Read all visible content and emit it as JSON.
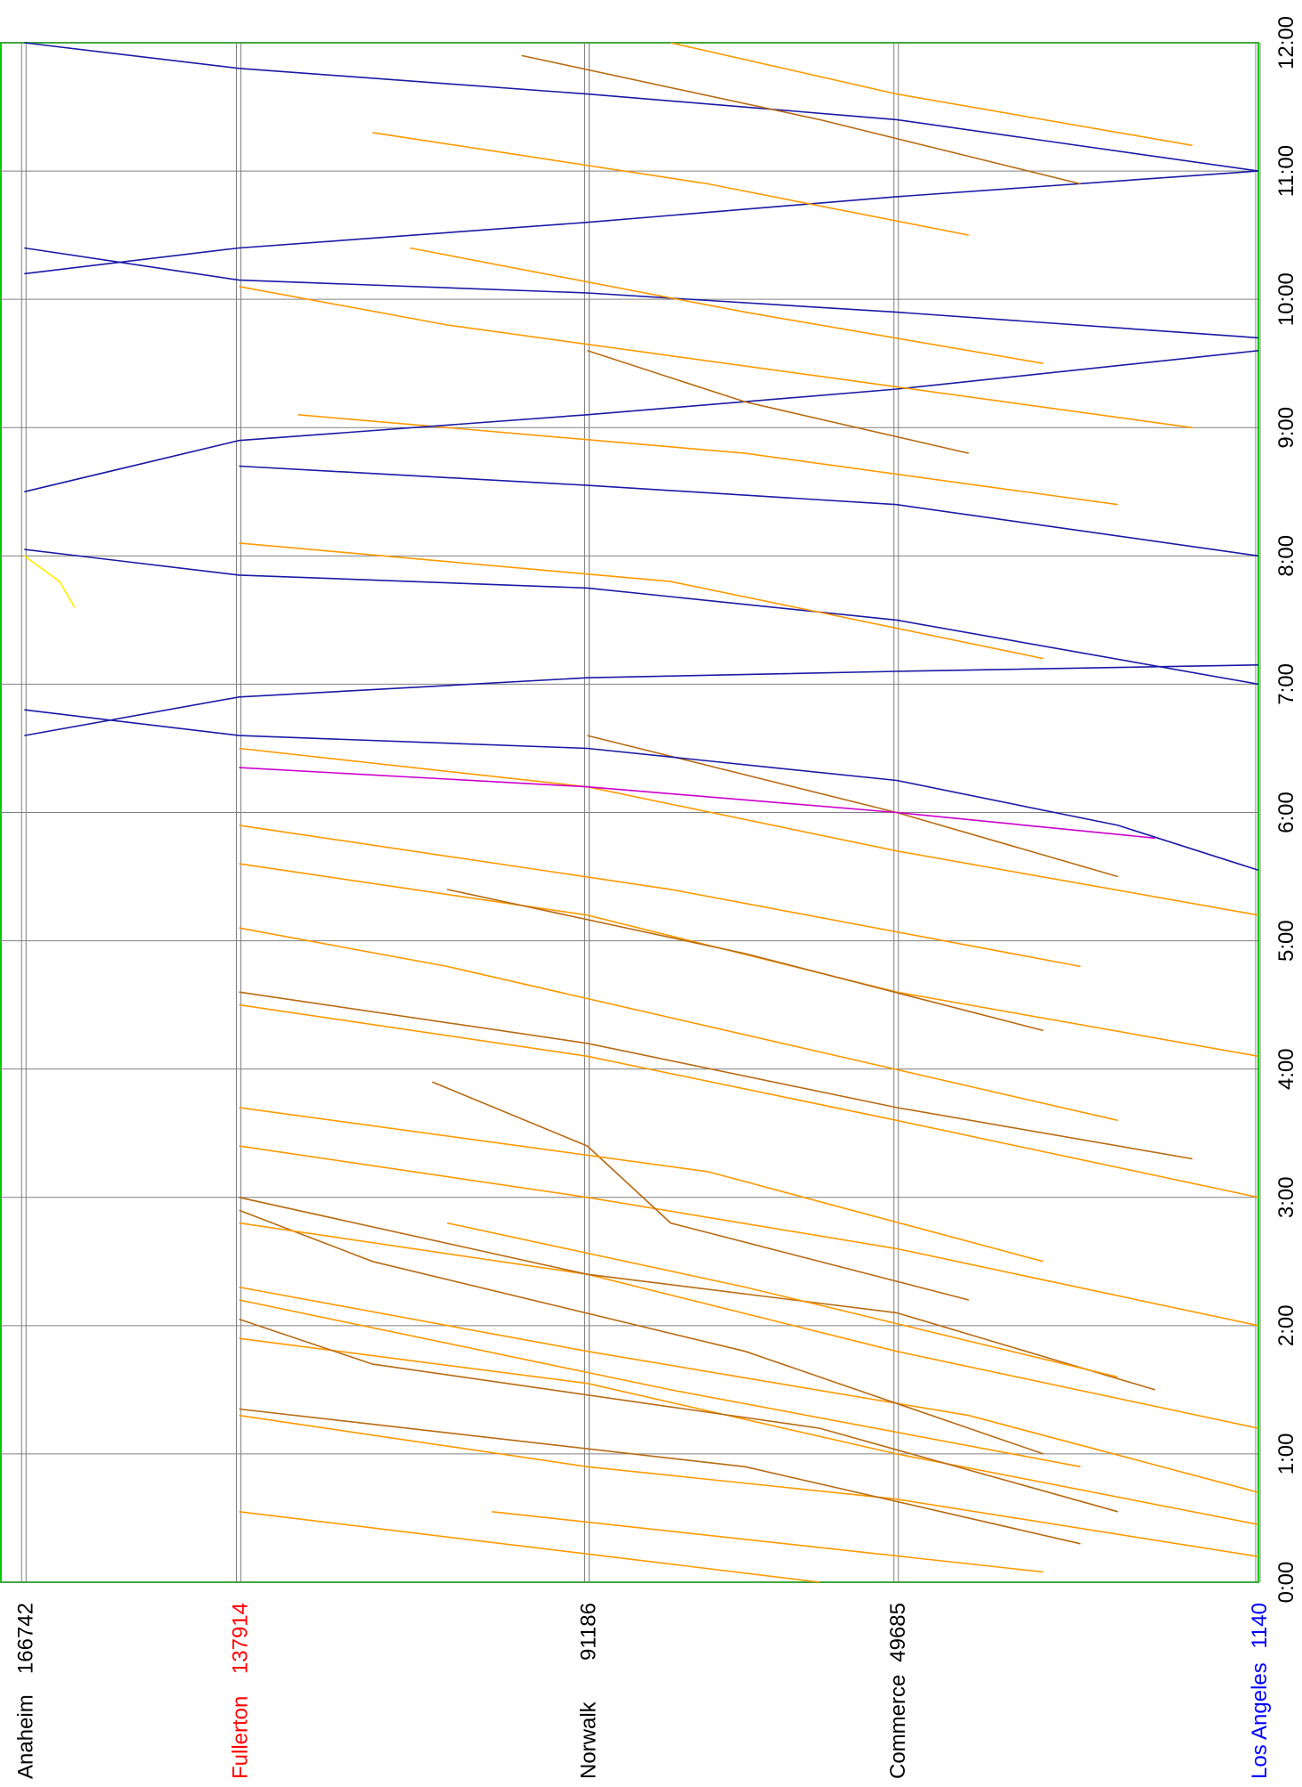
{
  "chart_data": {
    "type": "line",
    "subtype": "train-graph (time vs. station distance)",
    "title": "",
    "xlabel": "",
    "ylabel": "",
    "x_axis": {
      "kind": "time",
      "range": [
        "0:00",
        "12:00"
      ],
      "ticks": [
        "0:00",
        "1:00",
        "2:00",
        "3:00",
        "4:00",
        "5:00",
        "6:00",
        "7:00",
        "8:00",
        "9:00",
        "10:00",
        "11:00",
        "12:00"
      ]
    },
    "y_axis": {
      "kind": "station-distance",
      "range": [
        1140,
        170000
      ],
      "stations": [
        {
          "name": "Anaheim",
          "distance": "166742",
          "pos": 166742,
          "color": "#000000"
        },
        {
          "name": "Fullerton",
          "distance": "137914",
          "pos": 137914,
          "color": "#ff0000"
        },
        {
          "name": "Norwalk",
          "distance": "91186",
          "pos": 91186,
          "color": "#000000"
        },
        {
          "name": "Commerce",
          "distance": "49685",
          "pos": 49685,
          "color": "#000000"
        },
        {
          "name": "Los Angeles",
          "distance": "1140",
          "pos": 1140,
          "color": "#0000ff"
        }
      ]
    },
    "grid": true,
    "border_color": "#00cc00",
    "series_colors": {
      "passenger": "#ff9900",
      "freight": "#b86b12",
      "commuter": "#1a1aa6",
      "special": "#cc00cc",
      "other": "#ffee00"
    },
    "series": [
      {
        "kind": "passenger",
        "points": [
          [
            0.0,
            60000
          ],
          [
            0.55,
            137914
          ]
        ]
      },
      {
        "kind": "passenger",
        "points": [
          [
            0.08,
            30000
          ],
          [
            0.55,
            104000
          ]
        ]
      },
      {
        "kind": "passenger",
        "points": [
          [
            0.2,
            1140
          ],
          [
            0.65,
            50000
          ],
          [
            0.9,
            91186
          ],
          [
            1.3,
            137914
          ]
        ]
      },
      {
        "kind": "freight",
        "points": [
          [
            0.3,
            25000
          ],
          [
            0.9,
            70000
          ],
          [
            1.35,
            137914
          ]
        ]
      },
      {
        "kind": "passenger",
        "points": [
          [
            0.45,
            1140
          ],
          [
            1.0,
            49685
          ],
          [
            1.55,
            91186
          ],
          [
            1.9,
            137914
          ]
        ]
      },
      {
        "kind": "freight",
        "points": [
          [
            0.55,
            20000
          ],
          [
            1.2,
            60000
          ],
          [
            1.7,
            120000
          ],
          [
            2.05,
            137914
          ]
        ]
      },
      {
        "kind": "passenger",
        "points": [
          [
            0.7,
            1140
          ],
          [
            1.3,
            40000
          ],
          [
            1.8,
            91186
          ],
          [
            2.3,
            137914
          ]
        ]
      },
      {
        "kind": "passenger",
        "points": [
          [
            0.9,
            25000
          ],
          [
            1.5,
            80000
          ],
          [
            2.2,
            137914
          ]
        ]
      },
      {
        "kind": "freight",
        "points": [
          [
            1.0,
            30000
          ],
          [
            1.8,
            70000
          ],
          [
            2.5,
            120000
          ],
          [
            2.9,
            137914
          ]
        ]
      },
      {
        "kind": "passenger",
        "points": [
          [
            1.2,
            1140
          ],
          [
            1.8,
            49685
          ],
          [
            2.4,
            91186
          ],
          [
            2.8,
            137914
          ]
        ]
      },
      {
        "kind": "freight",
        "points": [
          [
            1.5,
            15000
          ],
          [
            2.1,
            49685
          ],
          [
            2.4,
            91186
          ],
          [
            3.0,
            137914
          ]
        ]
      },
      {
        "kind": "passenger",
        "points": [
          [
            1.6,
            20000
          ],
          [
            2.3,
            70000
          ],
          [
            2.8,
            110000
          ]
        ]
      },
      {
        "kind": "passenger",
        "points": [
          [
            2.0,
            1140
          ],
          [
            2.6,
            49685
          ],
          [
            3.0,
            91186
          ],
          [
            3.4,
            137914
          ]
        ]
      },
      {
        "kind": "freight",
        "points": [
          [
            2.2,
            40000
          ],
          [
            2.8,
            80000
          ],
          [
            3.4,
            91186
          ],
          [
            3.9,
            112000
          ]
        ]
      },
      {
        "kind": "passenger",
        "points": [
          [
            2.5,
            30000
          ],
          [
            3.2,
            75000
          ],
          [
            3.7,
            137914
          ]
        ]
      },
      {
        "kind": "passenger",
        "points": [
          [
            3.0,
            1140
          ],
          [
            3.6,
            49685
          ],
          [
            4.1,
            91186
          ],
          [
            4.5,
            137914
          ]
        ]
      },
      {
        "kind": "freight",
        "points": [
          [
            3.3,
            10000
          ],
          [
            3.7,
            49685
          ],
          [
            4.2,
            91186
          ],
          [
            4.6,
            137914
          ]
        ]
      },
      {
        "kind": "passenger",
        "points": [
          [
            3.6,
            20000
          ],
          [
            4.2,
            65000
          ],
          [
            4.8,
            110000
          ],
          [
            5.1,
            137914
          ]
        ]
      },
      {
        "kind": "passenger",
        "points": [
          [
            4.1,
            1140
          ],
          [
            4.6,
            49685
          ],
          [
            5.2,
            91186
          ],
          [
            5.6,
            137914
          ]
        ]
      },
      {
        "kind": "freight",
        "points": [
          [
            4.3,
            30000
          ],
          [
            4.9,
            70000
          ],
          [
            5.4,
            110000
          ]
        ]
      },
      {
        "kind": "passenger",
        "points": [
          [
            4.8,
            25000
          ],
          [
            5.4,
            80000
          ],
          [
            5.9,
            137914
          ]
        ]
      },
      {
        "kind": "passenger",
        "points": [
          [
            5.2,
            1140
          ],
          [
            5.7,
            49685
          ],
          [
            6.2,
            91186
          ],
          [
            6.5,
            137914
          ]
        ]
      },
      {
        "kind": "freight",
        "points": [
          [
            5.5,
            20000
          ],
          [
            6.0,
            49685
          ],
          [
            6.6,
            91186
          ]
        ]
      },
      {
        "kind": "special",
        "points": [
          [
            5.8,
            15000
          ],
          [
            6.0,
            49685
          ],
          [
            6.2,
            91186
          ],
          [
            6.35,
            137914
          ]
        ]
      },
      {
        "kind": "commuter",
        "points": [
          [
            5.55,
            1140
          ],
          [
            5.9,
            20000
          ],
          [
            6.25,
            49685
          ],
          [
            6.5,
            91186
          ],
          [
            6.6,
            137914
          ],
          [
            6.8,
            166742
          ]
        ]
      },
      {
        "kind": "commuter",
        "points": [
          [
            6.6,
            166742
          ],
          [
            6.9,
            137914
          ],
          [
            7.05,
            91186
          ],
          [
            7.1,
            49685
          ],
          [
            7.15,
            1140
          ]
        ]
      },
      {
        "kind": "commuter",
        "points": [
          [
            7.0,
            1140
          ],
          [
            7.5,
            49685
          ],
          [
            7.75,
            91186
          ],
          [
            7.85,
            137914
          ],
          [
            8.05,
            166742
          ]
        ]
      },
      {
        "kind": "passenger",
        "points": [
          [
            7.2,
            30000
          ],
          [
            7.8,
            80000
          ],
          [
            8.1,
            137914
          ]
        ]
      },
      {
        "kind": "commuter",
        "points": [
          [
            8.0,
            1140
          ],
          [
            8.4,
            49685
          ],
          [
            8.55,
            91186
          ],
          [
            8.7,
            137914
          ]
        ]
      },
      {
        "kind": "passenger",
        "points": [
          [
            8.4,
            20000
          ],
          [
            8.8,
            70000
          ],
          [
            9.1,
            130000
          ]
        ]
      },
      {
        "kind": "commuter",
        "points": [
          [
            8.5,
            166742
          ],
          [
            8.9,
            137914
          ],
          [
            9.1,
            91186
          ],
          [
            9.3,
            49685
          ],
          [
            9.6,
            1140
          ]
        ]
      },
      {
        "kind": "freight",
        "points": [
          [
            8.8,
            40000
          ],
          [
            9.2,
            70000
          ],
          [
            9.6,
            91186
          ]
        ]
      },
      {
        "kind": "passenger",
        "points": [
          [
            9.0,
            10000
          ],
          [
            9.4,
            60000
          ],
          [
            9.8,
            110000
          ],
          [
            10.1,
            137914
          ]
        ]
      },
      {
        "kind": "commuter",
        "points": [
          [
            9.7,
            1140
          ],
          [
            9.9,
            49685
          ],
          [
            10.05,
            91186
          ],
          [
            10.15,
            137914
          ],
          [
            10.4,
            166742
          ]
        ]
      },
      {
        "kind": "passenger",
        "points": [
          [
            9.5,
            30000
          ],
          [
            9.9,
            70000
          ],
          [
            10.4,
            115000
          ]
        ]
      },
      {
        "kind": "commuter",
        "points": [
          [
            10.2,
            166742
          ],
          [
            10.4,
            137914
          ],
          [
            10.6,
            91186
          ],
          [
            10.8,
            49685
          ],
          [
            11.0,
            1140
          ]
        ]
      },
      {
        "kind": "passenger",
        "points": [
          [
            10.5,
            40000
          ],
          [
            10.9,
            75000
          ],
          [
            11.3,
            120000
          ]
        ]
      },
      {
        "kind": "commuter",
        "points": [
          [
            11.0,
            1140
          ],
          [
            11.4,
            49685
          ],
          [
            11.6,
            91186
          ],
          [
            11.8,
            137914
          ],
          [
            12.0,
            166742
          ]
        ]
      },
      {
        "kind": "freight",
        "points": [
          [
            10.9,
            25000
          ],
          [
            11.4,
            60000
          ],
          [
            11.9,
            100000
          ]
        ]
      },
      {
        "kind": "passenger",
        "points": [
          [
            11.2,
            10000
          ],
          [
            11.6,
            49685
          ],
          [
            12.0,
            80000
          ]
        ]
      },
      {
        "kind": "other",
        "points": [
          [
            7.6,
            160000
          ],
          [
            7.8,
            162000
          ],
          [
            8.0,
            166742
          ]
        ]
      }
    ]
  }
}
